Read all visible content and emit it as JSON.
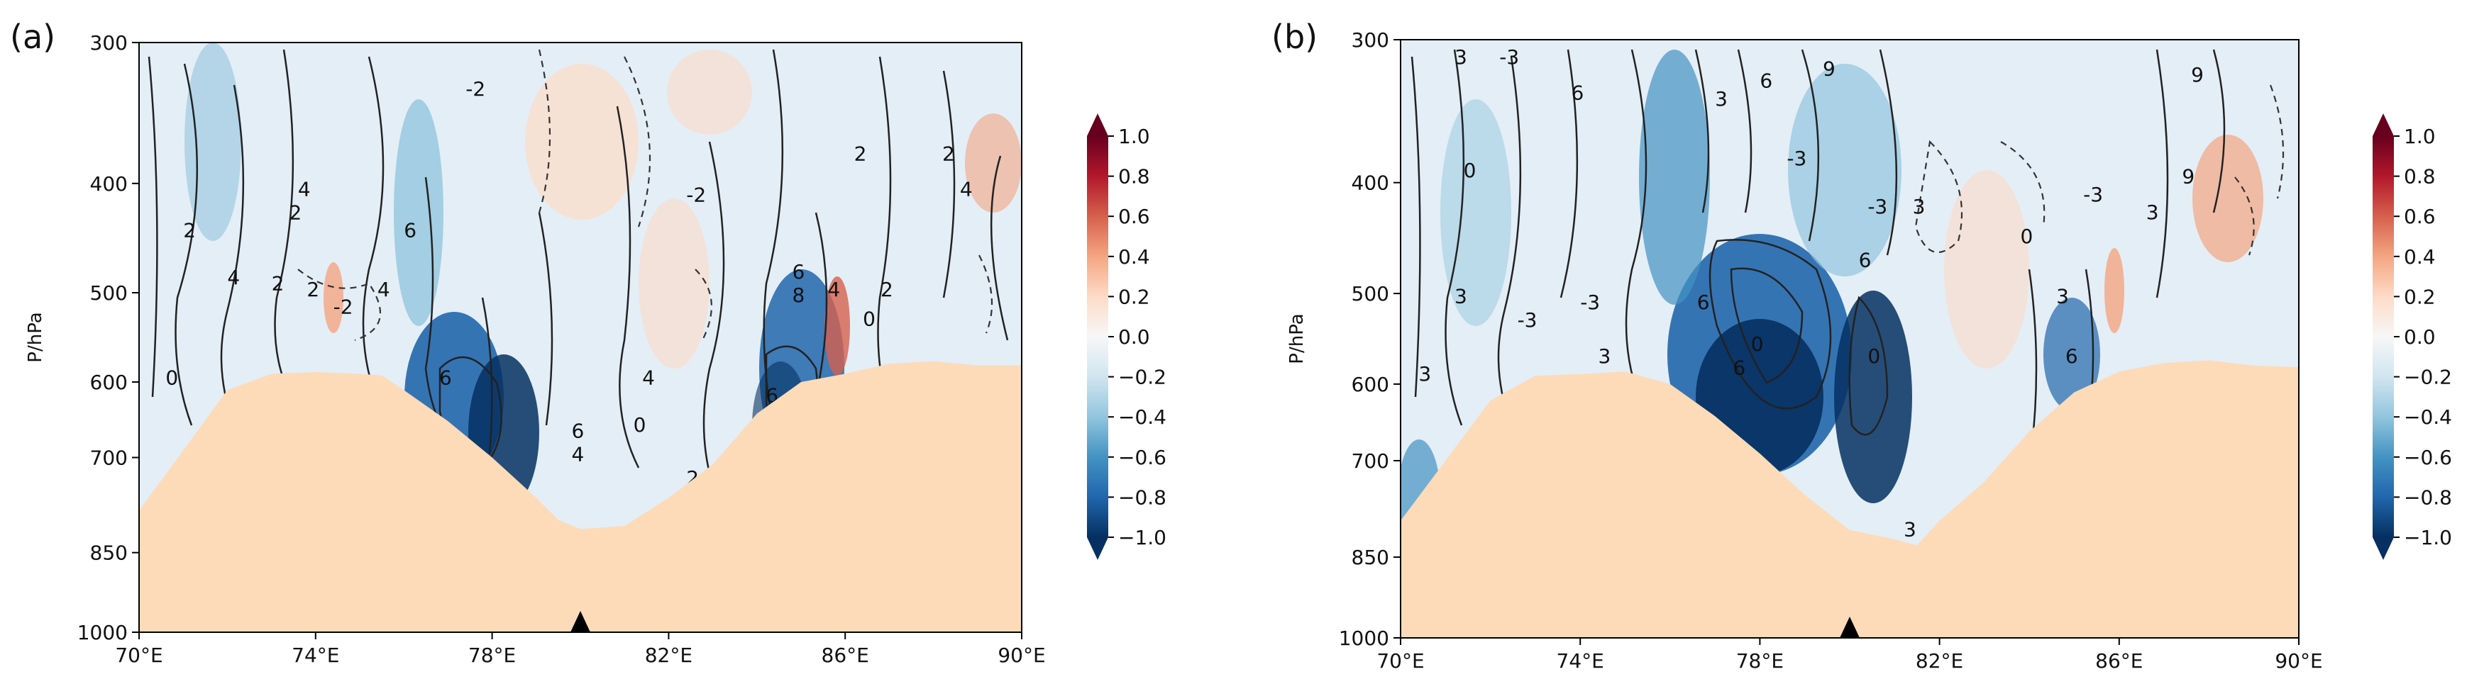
{
  "chart_data": [
    {
      "type": "heatmap",
      "panel_label": "(a)",
      "ylabel": "P/hPa",
      "y_ticks": [
        300,
        400,
        500,
        600,
        700,
        850,
        1000
      ],
      "x_ticks": [
        "70°E",
        "74°E",
        "78°E",
        "82°E",
        "86°E",
        "90°E"
      ],
      "xlim": [
        70,
        90
      ],
      "ylim": [
        1000,
        300
      ],
      "colorbar": {
        "ticks": [
          "1.0",
          "0.8",
          "0.6",
          "0.4",
          "0.2",
          "0.0",
          "−0.2",
          "−0.4",
          "−0.6",
          "−0.8",
          "−1.0"
        ],
        "range": [
          -1.0,
          1.0
        ],
        "colormap": "RdBu_r"
      },
      "contour_labels": [
        "-2",
        "4",
        "2",
        "6",
        "2",
        "-2",
        "4",
        "6",
        "-2",
        "2",
        "0",
        "4",
        "2",
        "-2",
        "4",
        "6",
        "2",
        "6",
        "4",
        "8",
        "0",
        "2",
        "2",
        "4",
        "6",
        "4",
        "-2",
        "4",
        "2",
        "4",
        "-2",
        "2",
        "0"
      ],
      "terrain_top_hPa": [
        [
          70,
          780
        ],
        [
          71,
          690
        ],
        [
          72,
          610
        ],
        [
          73,
          590
        ],
        [
          74,
          588
        ],
        [
          75,
          590
        ],
        [
          75.5,
          592
        ],
        [
          76,
          610
        ],
        [
          77,
          650
        ],
        [
          78,
          700
        ],
        [
          79,
          760
        ],
        [
          79.5,
          795
        ],
        [
          80,
          810
        ],
        [
          81,
          805
        ],
        [
          82,
          760
        ],
        [
          83,
          710
        ],
        [
          84,
          640
        ],
        [
          85,
          600
        ],
        [
          86,
          590
        ],
        [
          87,
          578
        ],
        [
          88,
          575
        ],
        [
          89,
          580
        ],
        [
          90,
          580
        ]
      ],
      "marker": {
        "x": 80,
        "shape": "triangle"
      }
    },
    {
      "type": "heatmap",
      "panel_label": "(b)",
      "ylabel": "P/hPa",
      "y_ticks": [
        300,
        400,
        500,
        600,
        700,
        850,
        1000
      ],
      "x_ticks": [
        "70°E",
        "74°E",
        "78°E",
        "82°E",
        "86°E",
        "90°E"
      ],
      "xlim": [
        70,
        90
      ],
      "ylim": [
        1000,
        300
      ],
      "colorbar": {
        "ticks": [
          "1.0",
          "0.8",
          "0.6",
          "0.4",
          "0.2",
          "0.0",
          "−0.2",
          "−0.4",
          "−0.6",
          "−0.8",
          "−1.0"
        ],
        "range": [
          -1.0,
          1.0
        ],
        "colormap": "RdBu_r"
      },
      "contour_labels": [
        "3",
        "-3",
        "6",
        "3",
        "6",
        "9",
        "0",
        "-3",
        "-3",
        "-3",
        "-3",
        "3",
        "0",
        "6",
        "6",
        "3",
        "3",
        "6",
        "3",
        "9",
        "3",
        "-3",
        "0",
        "9",
        "6",
        "0",
        "3",
        "3"
      ],
      "terrain_top_hPa": [
        [
          70,
          790
        ],
        [
          71,
          700
        ],
        [
          72,
          620
        ],
        [
          73,
          590
        ],
        [
          74,
          588
        ],
        [
          75,
          585
        ],
        [
          76,
          600
        ],
        [
          77,
          640
        ],
        [
          78,
          690
        ],
        [
          79,
          750
        ],
        [
          80,
          805
        ],
        [
          81,
          820
        ],
        [
          81.5,
          830
        ],
        [
          82,
          790
        ],
        [
          83,
          730
        ],
        [
          84,
          660
        ],
        [
          85,
          610
        ],
        [
          86,
          585
        ],
        [
          87,
          575
        ],
        [
          88,
          572
        ],
        [
          89,
          578
        ],
        [
          90,
          580
        ]
      ],
      "marker": {
        "x": 80,
        "shape": "triangle"
      }
    }
  ]
}
